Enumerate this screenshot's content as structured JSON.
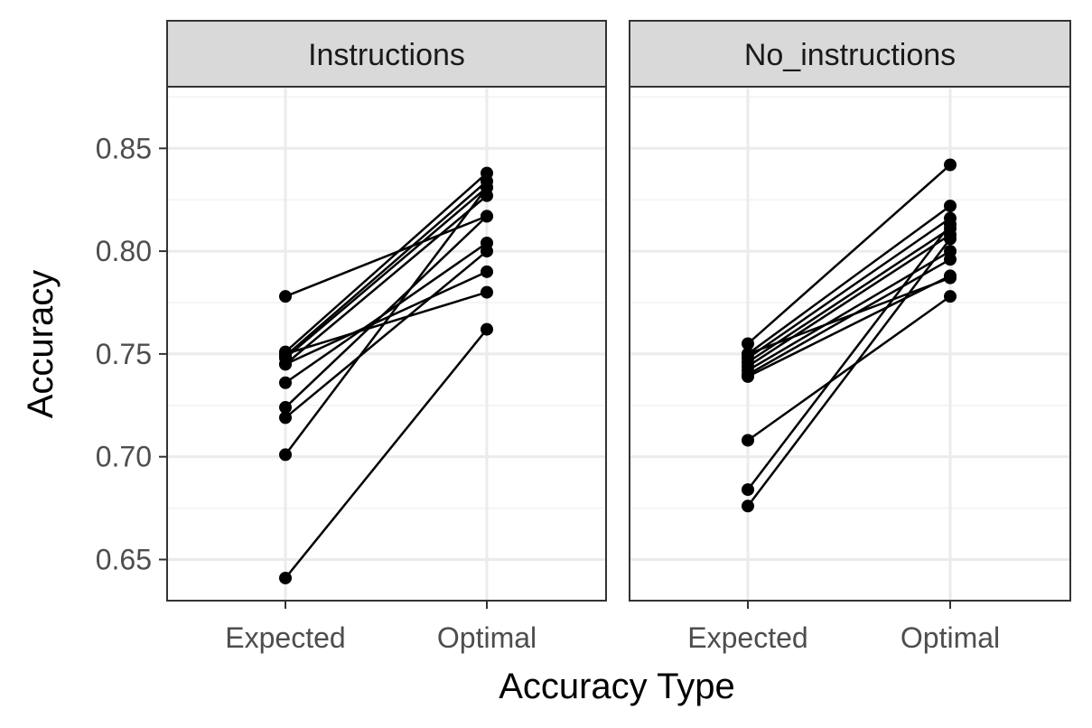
{
  "chart_data": {
    "type": "line",
    "xlabel": "Accuracy Type",
    "ylabel": "Accuracy",
    "categories": [
      "Expected",
      "Optimal"
    ],
    "ylim": [
      0.63,
      0.88
    ],
    "yticks": [
      0.65,
      0.7,
      0.75,
      0.8,
      0.85
    ],
    "ytick_labels": [
      "0.65",
      "0.70",
      "0.75",
      "0.80",
      "0.85"
    ],
    "grid": true,
    "facets": [
      {
        "label": "Instructions",
        "pairs": [
          [
            0.778,
            0.817
          ],
          [
            0.751,
            0.838
          ],
          [
            0.749,
            0.834
          ],
          [
            0.748,
            0.831
          ],
          [
            0.745,
            0.827
          ],
          [
            0.736,
            0.804
          ],
          [
            0.724,
            0.817
          ],
          [
            0.719,
            0.8
          ],
          [
            0.701,
            0.831
          ],
          [
            0.75,
            0.78
          ],
          [
            0.745,
            0.79
          ],
          [
            0.641,
            0.762
          ]
        ]
      },
      {
        "label": "No_instructions",
        "pairs": [
          [
            0.755,
            0.842
          ],
          [
            0.75,
            0.822
          ],
          [
            0.748,
            0.816
          ],
          [
            0.746,
            0.811
          ],
          [
            0.744,
            0.808
          ],
          [
            0.742,
            0.8
          ],
          [
            0.74,
            0.796
          ],
          [
            0.739,
            0.788
          ],
          [
            0.708,
            0.778
          ],
          [
            0.684,
            0.813
          ],
          [
            0.676,
            0.806
          ],
          [
            0.75,
            0.787
          ]
        ]
      }
    ]
  }
}
